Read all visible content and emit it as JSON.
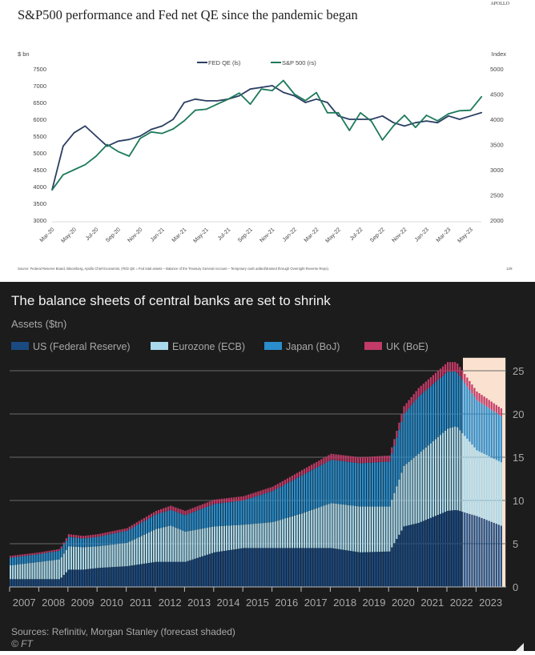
{
  "chart_data": [
    {
      "type": "line",
      "title": "S&P500 performance and Fed net QE since the pandemic began",
      "logo": "APOLLO",
      "ylabel_left": "$ bn",
      "ylabel_right": "Index",
      "ylim_left": [
        3000,
        7500
      ],
      "ylim_right": [
        2000,
        5000
      ],
      "yticks_left": [
        "7500",
        "7000",
        "6500",
        "6000",
        "5500",
        "5000",
        "4500",
        "4000",
        "3500",
        "3000"
      ],
      "yticks_right": [
        "5000",
        "4500",
        "4000",
        "3500",
        "3000",
        "2500",
        "2000"
      ],
      "xticks": [
        "Mar-20",
        "May-20",
        "Jul-20",
        "Sep-20",
        "Nov-20",
        "Jan-21",
        "Mar-21",
        "May-21",
        "Jul-21",
        "Sep-21",
        "Nov-21",
        "Jan-22",
        "Mar-22",
        "May-22",
        "Jul-22",
        "Sep-22",
        "Nov-22",
        "Jan-23",
        "Mar-23",
        "May-23"
      ],
      "legend_placement": "top-center",
      "grid": false,
      "source": "Source: Federal Reserve Board, Bloomberg, Apollo Chief Economist. (FED QE = Fed total assets – Balance of the Treasury General Account – Temporary cash added/drained through Overnight Reverse Repo).",
      "page_number": "129",
      "x": [
        "2020-03",
        "2020-04",
        "2020-05",
        "2020-06",
        "2020-07",
        "2020-08",
        "2020-09",
        "2020-10",
        "2020-11",
        "2020-12",
        "2021-01",
        "2021-02",
        "2021-03",
        "2021-04",
        "2021-05",
        "2021-06",
        "2021-07",
        "2021-08",
        "2021-09",
        "2021-10",
        "2021-11",
        "2021-12",
        "2022-01",
        "2022-02",
        "2022-03",
        "2022-04",
        "2022-05",
        "2022-06",
        "2022-07",
        "2022-08",
        "2022-09",
        "2022-10",
        "2022-11",
        "2022-12",
        "2023-01",
        "2023-02",
        "2023-03",
        "2023-04",
        "2023-05",
        "2023-06"
      ],
      "series": [
        {
          "name": "FED QE (ls)",
          "axis": "left",
          "color": "#2b3f63",
          "values": [
            3900,
            5200,
            5600,
            5800,
            5500,
            5200,
            5350,
            5400,
            5500,
            5700,
            5800,
            6000,
            6500,
            6600,
            6550,
            6550,
            6600,
            6700,
            6900,
            6950,
            7000,
            6800,
            6700,
            6500,
            6600,
            6500,
            6100,
            6000,
            6000,
            6000,
            6100,
            5900,
            5800,
            5900,
            5950,
            5900,
            6100,
            6000,
            6100,
            6200
          ]
        },
        {
          "name": "S&P 500 (rs)",
          "axis": "right",
          "color": "#1e7a5a",
          "values": [
            2600,
            2900,
            3000,
            3100,
            3270,
            3500,
            3360,
            3270,
            3620,
            3750,
            3720,
            3810,
            3970,
            4180,
            4200,
            4300,
            4400,
            4520,
            4300,
            4600,
            4570,
            4770,
            4500,
            4370,
            4530,
            4130,
            4130,
            3780,
            4130,
            3960,
            3590,
            3870,
            4080,
            3840,
            4080,
            3970,
            4110,
            4170,
            4180,
            4450
          ]
        }
      ]
    },
    {
      "type": "bar",
      "stacked": true,
      "title": "The balance sheets of central banks are set to shrink",
      "ylabel": "Assets ($tn)",
      "ylim": [
        0,
        25
      ],
      "yticks": [
        "0",
        "5",
        "10",
        "15",
        "20",
        "25"
      ],
      "xticks": [
        "2007",
        "2008",
        "2009",
        "2010",
        "2011",
        "2012",
        "2013",
        "2014",
        "2015",
        "2016",
        "2017",
        "2018",
        "2019",
        "2020",
        "2021",
        "2022",
        "2023"
      ],
      "grid": true,
      "legend_placement": "top-left",
      "forecast_start": 2022.55,
      "forecast_color": "#fbe2d0",
      "source": "Sources: Refinitiv, Morgan Stanley (forecast shaded)",
      "credit": "© FT",
      "x": [
        2007.0,
        2008.0,
        2008.7,
        2009.0,
        2009.5,
        2010.0,
        2011.0,
        2012.0,
        2012.5,
        2013.0,
        2014.0,
        2015.0,
        2016.0,
        2017.0,
        2018.0,
        2019.0,
        2020.0,
        2020.5,
        2021.0,
        2022.0,
        2022.3,
        2023.0,
        2023.9
      ],
      "series": [
        {
          "name": "US (Federal Reserve)",
          "color": "#1b4a80",
          "values": [
            0.9,
            0.9,
            0.9,
            2.0,
            2.0,
            2.2,
            2.4,
            2.9,
            2.9,
            2.9,
            4.0,
            4.5,
            4.5,
            4.5,
            4.5,
            4.0,
            4.1,
            7.0,
            7.4,
            8.8,
            8.9,
            8.2,
            7.0
          ]
        },
        {
          "name": "Eurozone (ECB)",
          "color": "#a9d9ec",
          "values": [
            1.6,
            2.0,
            2.3,
            2.7,
            2.6,
            2.5,
            2.7,
            3.8,
            4.2,
            3.5,
            3.0,
            2.7,
            3.0,
            4.0,
            5.2,
            5.3,
            5.2,
            7.0,
            8.0,
            9.5,
            9.7,
            7.6,
            7.3
          ]
        },
        {
          "name": "Japan (BoJ)",
          "color": "#2a8dcc",
          "values": [
            0.9,
            0.9,
            1.0,
            1.1,
            1.0,
            1.1,
            1.4,
            1.7,
            1.8,
            1.9,
            2.6,
            2.8,
            3.6,
            4.4,
            5.0,
            5.0,
            5.2,
            6.0,
            6.6,
            6.6,
            6.3,
            5.8,
            5.3
          ]
        },
        {
          "name": "UK (BoE)",
          "color": "#c23a67",
          "values": [
            0.2,
            0.2,
            0.2,
            0.3,
            0.3,
            0.3,
            0.3,
            0.4,
            0.5,
            0.5,
            0.5,
            0.5,
            0.5,
            0.6,
            0.7,
            0.7,
            0.7,
            0.9,
            1.0,
            1.1,
            1.1,
            1.0,
            0.9
          ]
        }
      ]
    }
  ]
}
